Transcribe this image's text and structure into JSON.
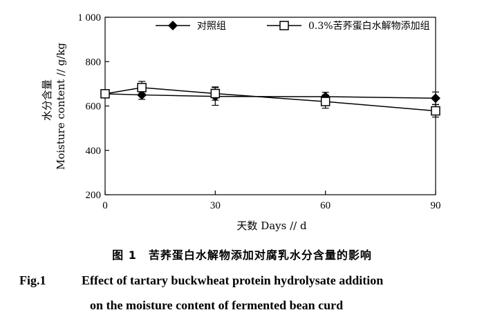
{
  "chart_data": {
    "type": "line",
    "x": [
      0,
      10,
      30,
      60,
      90
    ],
    "series": [
      {
        "name": "对照组",
        "marker": "filled-diamond",
        "color": "#000000",
        "values": [
          655,
          650,
          643,
          642,
          635
        ],
        "errors": [
          15,
          20,
          40,
          20,
          28
        ]
      },
      {
        "name": "0.3%苦荞蛋白水解物添加组",
        "marker": "open-square",
        "color": "#000000",
        "values": [
          655,
          683,
          656,
          620,
          578
        ],
        "errors": [
          15,
          28,
          30,
          30,
          28
        ]
      }
    ],
    "xticks": [
      0,
      30,
      60,
      90
    ],
    "yticks": [
      200,
      400,
      600,
      800,
      1000
    ],
    "ytick_labels": [
      "200",
      "400",
      "600",
      "800",
      "1 000"
    ],
    "xlim": [
      0,
      90
    ],
    "ylim": [
      200,
      1000
    ],
    "ylabel_cn": "水分含量",
    "ylabel_en": "Moisture content // g/kg",
    "xlabel": "天数 Days // d",
    "legend_position": "top"
  },
  "caption": {
    "cn": "图 1　苦荞蛋白水解物添加对腐乳水分含量的影响",
    "en_label": "Fig.1",
    "en_line1": "Effect of tartary buckwheat protein hydrolysate addition",
    "en_line2": "on the moisture content of fermented bean curd"
  }
}
